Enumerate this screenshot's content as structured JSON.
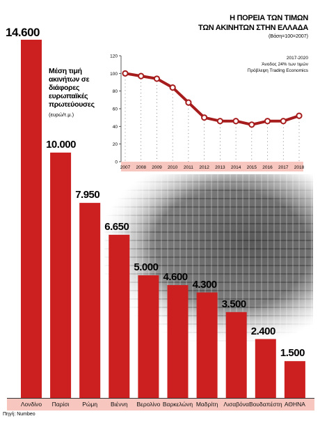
{
  "chart_data": [
    {
      "type": "bar",
      "title": "Μέση τιμή ακινήτων σε διάφορες ευρωπαϊκές πρωτεύουσες",
      "unit": "(ευρώ/τ.μ.)",
      "categories": [
        "Λονδίνο",
        "Παρίσι",
        "Ρώμη",
        "Βιέννη",
        "Βερολίνο",
        "Βαρκελώνη",
        "Μαδρίτη",
        "Λισαβόνα",
        "Βουδαπέστη",
        "ΑΘΗΝΑ"
      ],
      "values": [
        14600,
        10000,
        7950,
        6650,
        5000,
        4600,
        4300,
        3500,
        2400,
        1500
      ],
      "value_labels": [
        "14.600",
        "10.000",
        "7.950",
        "6.650",
        "5.000",
        "4.600",
        "4.300",
        "3.500",
        "2.400",
        "1.500"
      ],
      "bar_color": "#cc1f1f",
      "ylim": [
        0,
        14600
      ]
    },
    {
      "type": "line",
      "title": "Η ΠΟΡΕΙΑ ΤΩΝ ΤΙΜΩΝ",
      "subtitle": "ΤΩΝ ΑΚΙΝΗΤΩΝ ΣΤΗΝ ΕΛΛΑΔΑ",
      "base_note": "(Βάση=100=2007)",
      "annotations": [
        "2017-2020",
        "Άνοδος 24% των τιμών",
        "Πρόβλεψη Trading Economics"
      ],
      "x": [
        "2007",
        "2008",
        "2009",
        "2010",
        "2011",
        "2012",
        "2013",
        "2014",
        "2015",
        "2016",
        "2017",
        "2018"
      ],
      "y": [
        100,
        97,
        94,
        84,
        67,
        50,
        46,
        46,
        42,
        46,
        46,
        52
      ],
      "yticks": [
        0,
        20,
        40,
        60,
        80,
        100,
        120
      ],
      "ylim": [
        0,
        120
      ],
      "line_color": "#a61c1c",
      "grid": true
    }
  ],
  "source": "Πηγή: Numbeo"
}
